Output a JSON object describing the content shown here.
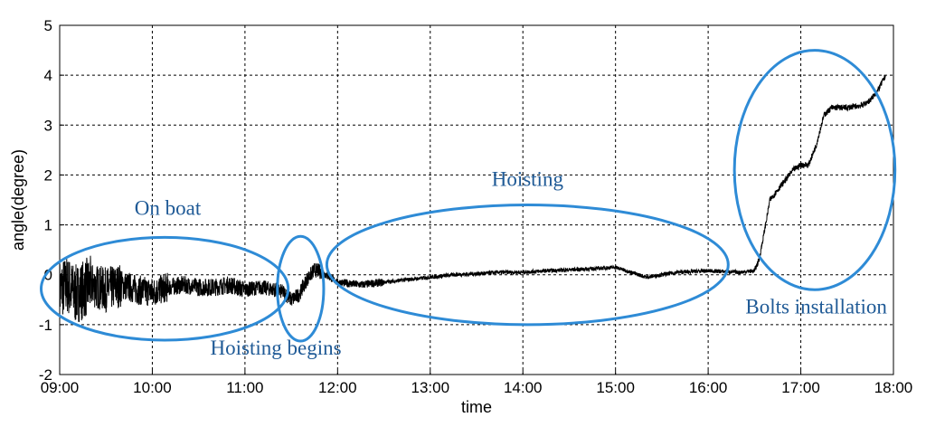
{
  "chart_data": {
    "type": "line",
    "title": "",
    "xlabel": "time",
    "ylabel": "angle(degree)",
    "x_ticks": [
      "09:00",
      "10:00",
      "11:00",
      "12:00",
      "13:00",
      "14:00",
      "15:00",
      "16:00",
      "17:00",
      "18:00"
    ],
    "y_ticks": [
      "-2",
      "-1",
      "0",
      "1",
      "2",
      "3",
      "4",
      "5"
    ],
    "xlim": [
      "09:00",
      "18:00"
    ],
    "ylim": [
      -2,
      5
    ],
    "grid": true,
    "grid_style": "dotted",
    "series_color": "#000000",
    "annotation_color": "#2e8bd6",
    "series": [
      {
        "x": [
          "09:00",
          "09:05",
          "09:10",
          "09:15",
          "09:20",
          "09:30",
          "09:40",
          "09:50",
          "10:00",
          "10:10",
          "10:20",
          "10:30",
          "10:40",
          "10:50",
          "11:00",
          "11:10",
          "11:20",
          "11:25",
          "11:30",
          "11:35",
          "11:40",
          "11:45",
          "11:50",
          "12:00",
          "12:15",
          "12:30",
          "12:45",
          "13:00",
          "13:15",
          "13:30",
          "13:45",
          "14:00",
          "14:15",
          "14:30",
          "14:45",
          "15:00",
          "15:10",
          "15:20",
          "15:40",
          "16:00",
          "16:20",
          "16:30",
          "16:33",
          "16:36",
          "16:40",
          "16:45",
          "16:50",
          "16:55",
          "17:00",
          "17:05",
          "17:10",
          "17:15",
          "17:20",
          "17:30",
          "17:40",
          "17:45",
          "17:50",
          "17:55"
        ],
        "y": [
          -0.3,
          -0.2,
          -0.4,
          -0.3,
          -0.2,
          -0.3,
          -0.2,
          -0.3,
          -0.35,
          -0.25,
          -0.2,
          -0.25,
          -0.25,
          -0.2,
          -0.3,
          -0.25,
          -0.3,
          -0.35,
          -0.5,
          -0.4,
          -0.1,
          0.1,
          0.05,
          -0.15,
          -0.2,
          -0.15,
          -0.1,
          -0.05,
          0.0,
          0.02,
          0.05,
          0.05,
          0.08,
          0.1,
          0.12,
          0.15,
          0.05,
          -0.05,
          0.05,
          0.08,
          0.05,
          0.08,
          0.3,
          0.8,
          1.5,
          1.7,
          1.9,
          2.1,
          2.2,
          2.2,
          2.6,
          3.2,
          3.35,
          3.35,
          3.4,
          3.5,
          3.7,
          4.0
        ]
      }
    ],
    "noise_bands": [
      {
        "from": "09:00",
        "to": "09:20",
        "amplitude": 0.6
      },
      {
        "from": "09:20",
        "to": "09:40",
        "amplitude": 0.45
      },
      {
        "from": "09:40",
        "to": "10:10",
        "amplitude": 0.3
      },
      {
        "from": "10:10",
        "to": "11:00",
        "amplitude": 0.18
      },
      {
        "from": "11:00",
        "to": "11:50",
        "amplitude": 0.15
      },
      {
        "from": "11:50",
        "to": "12:30",
        "amplitude": 0.08
      },
      {
        "from": "12:30",
        "to": "16:30",
        "amplitude": 0.04
      },
      {
        "from": "16:30",
        "to": "18:00",
        "amplitude": 0.06
      }
    ],
    "annotations": [
      {
        "text": "On boat",
        "center": {
          "x": "10:08",
          "y": -0.28
        },
        "radius_min": 80,
        "radius_value": 1.03,
        "label_at": {
          "x": "10:10",
          "y": 1.2
        }
      },
      {
        "text": "Hoisting begins",
        "center": {
          "x": "11:36",
          "y": -0.28
        },
        "radius_min": 15,
        "radius_value": 1.05,
        "label_at": {
          "x": "11:20",
          "y": -1.6
        }
      },
      {
        "text": "Hoisting",
        "center": {
          "x": "14:03",
          "y": 0.2
        },
        "radius_min": 130,
        "radius_value": 1.2,
        "label_at": {
          "x": "14:03",
          "y": 1.78
        }
      },
      {
        "text": "Bolts installation",
        "center": {
          "x": "17:09",
          "y": 2.1
        },
        "radius_min": 52,
        "radius_value": 2.4,
        "label_at": {
          "x": "17:10",
          "y": -0.78
        }
      }
    ]
  }
}
